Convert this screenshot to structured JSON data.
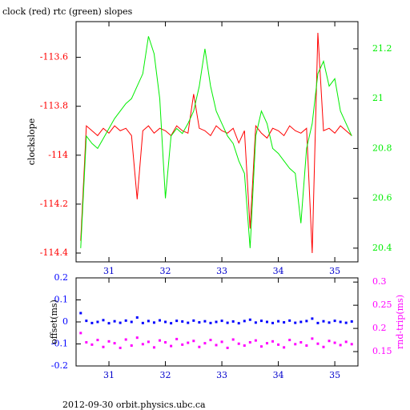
{
  "chart_data": [
    {
      "type": "line",
      "title": "clock (red) rtc (green) slopes",
      "ylabel": "clockslope",
      "xlim": [
        30.418,
        35.41
      ],
      "xticks": [
        31,
        32,
        33,
        34,
        35
      ],
      "ylim": [
        -114.436,
        -113.454
      ],
      "yticks": [
        -113.6,
        -113.8,
        -114,
        -114.2,
        -114.4
      ],
      "y2lim": [
        20.345,
        21.309
      ],
      "y2ticks": [
        21.2,
        21,
        20.8,
        20.6,
        20.4
      ],
      "x": [
        30.5,
        30.6,
        30.7,
        30.8,
        30.9,
        31.0,
        31.1,
        31.2,
        31.3,
        31.4,
        31.5,
        31.6,
        31.7,
        31.8,
        31.9,
        32.0,
        32.1,
        32.2,
        32.3,
        32.4,
        32.5,
        32.6,
        32.7,
        32.8,
        32.9,
        33.0,
        33.1,
        33.2,
        33.3,
        33.4,
        33.5,
        33.6,
        33.7,
        33.8,
        33.9,
        34.0,
        34.1,
        34.2,
        34.3,
        34.4,
        34.5,
        34.6,
        34.7,
        34.8,
        34.9,
        35.0,
        35.1,
        35.2,
        35.3
      ],
      "series": [
        {
          "color": "#ff0000",
          "values": [
            -114.35,
            -113.88,
            -113.9,
            -113.92,
            -113.89,
            -113.91,
            -113.88,
            -113.9,
            -113.89,
            -113.92,
            -114.18,
            -113.9,
            -113.88,
            -113.91,
            -113.89,
            -113.9,
            -113.92,
            -113.88,
            -113.9,
            -113.91,
            -113.75,
            -113.89,
            -113.9,
            -113.92,
            -113.88,
            -113.9,
            -113.91,
            -113.89,
            -113.95,
            -113.9,
            -114.3,
            -113.88,
            -113.91,
            -113.93,
            -113.89,
            -113.9,
            -113.92,
            -113.88,
            -113.9,
            -113.91,
            -113.89,
            -114.4,
            -113.5,
            -113.9,
            -113.89,
            -113.91,
            -113.88,
            -113.9,
            -113.92
          ]
        },
        {
          "color": "#00ee00",
          "axis": "y2",
          "values": [
            20.4,
            20.85,
            20.82,
            20.8,
            20.84,
            20.88,
            20.92,
            20.95,
            20.98,
            21.0,
            21.05,
            21.1,
            21.25,
            21.18,
            21.0,
            20.6,
            20.85,
            20.88,
            20.86,
            20.9,
            20.95,
            21.05,
            21.2,
            21.05,
            20.95,
            20.9,
            20.85,
            20.82,
            20.75,
            20.7,
            20.4,
            20.85,
            20.95,
            20.9,
            20.8,
            20.78,
            20.75,
            20.72,
            20.7,
            20.5,
            20.8,
            20.9,
            21.1,
            21.15,
            21.05,
            21.08,
            20.95,
            20.9,
            20.85
          ]
        }
      ]
    },
    {
      "type": "scatter",
      "ylabel": "offset(ms)",
      "y2label": "rnd-trip(ms)",
      "xlim": [
        30.418,
        35.41
      ],
      "xticks": [
        31,
        32,
        33,
        34,
        35
      ],
      "ylim": [
        -0.2,
        0.2
      ],
      "yticks": [
        0.2,
        0.1,
        0,
        -0.1,
        -0.2
      ],
      "y2lim": [
        0.119,
        0.309
      ],
      "y2ticks": [
        0.3,
        0.25,
        0.2,
        0.15
      ],
      "x": [
        30.5,
        30.6,
        30.7,
        30.8,
        30.9,
        31.0,
        31.1,
        31.2,
        31.3,
        31.4,
        31.5,
        31.6,
        31.7,
        31.8,
        31.9,
        32.0,
        32.1,
        32.2,
        32.3,
        32.4,
        32.5,
        32.6,
        32.7,
        32.8,
        32.9,
        33.0,
        33.1,
        33.2,
        33.3,
        33.4,
        33.5,
        33.6,
        33.7,
        33.8,
        33.9,
        34.0,
        34.1,
        34.2,
        34.3,
        34.4,
        34.5,
        34.6,
        34.7,
        34.8,
        34.9,
        35.0,
        35.1,
        35.2,
        35.3
      ],
      "series": [
        {
          "color": "#0000ff",
          "values": [
            0.04,
            0.005,
            -0.005,
            0.0,
            0.008,
            -0.006,
            0.003,
            -0.004,
            0.006,
            0.0,
            0.02,
            -0.005,
            0.004,
            -0.003,
            0.007,
            0.0,
            -0.006,
            0.005,
            0.002,
            -0.004,
            0.006,
            -0.002,
            0.003,
            -0.005,
            0.0,
            0.005,
            -0.004,
            0.002,
            -0.006,
            0.004,
            0.01,
            -0.003,
            0.005,
            0.0,
            -0.005,
            0.003,
            -0.002,
            0.006,
            -0.004,
            0.0,
            0.004,
            0.015,
            -0.005,
            0.003,
            -0.003,
            0.005,
            0.0,
            -0.004,
            0.002
          ]
        },
        {
          "color": "#ff00ff",
          "axis": "y2",
          "values": [
            0.19,
            0.17,
            0.165,
            0.175,
            0.16,
            0.172,
            0.168,
            0.158,
            0.176,
            0.163,
            0.18,
            0.166,
            0.171,
            0.159,
            0.174,
            0.17,
            0.162,
            0.177,
            0.165,
            0.169,
            0.173,
            0.16,
            0.168,
            0.175,
            0.164,
            0.171,
            0.158,
            0.176,
            0.167,
            0.163,
            0.17,
            0.174,
            0.161,
            0.168,
            0.172,
            0.165,
            0.159,
            0.175,
            0.166,
            0.17,
            0.163,
            0.178,
            0.167,
            0.16,
            0.173,
            0.169,
            0.164,
            0.171,
            0.166
          ]
        }
      ]
    }
  ],
  "footer": "2012-09-30 orbit.physics.ubc.ca"
}
